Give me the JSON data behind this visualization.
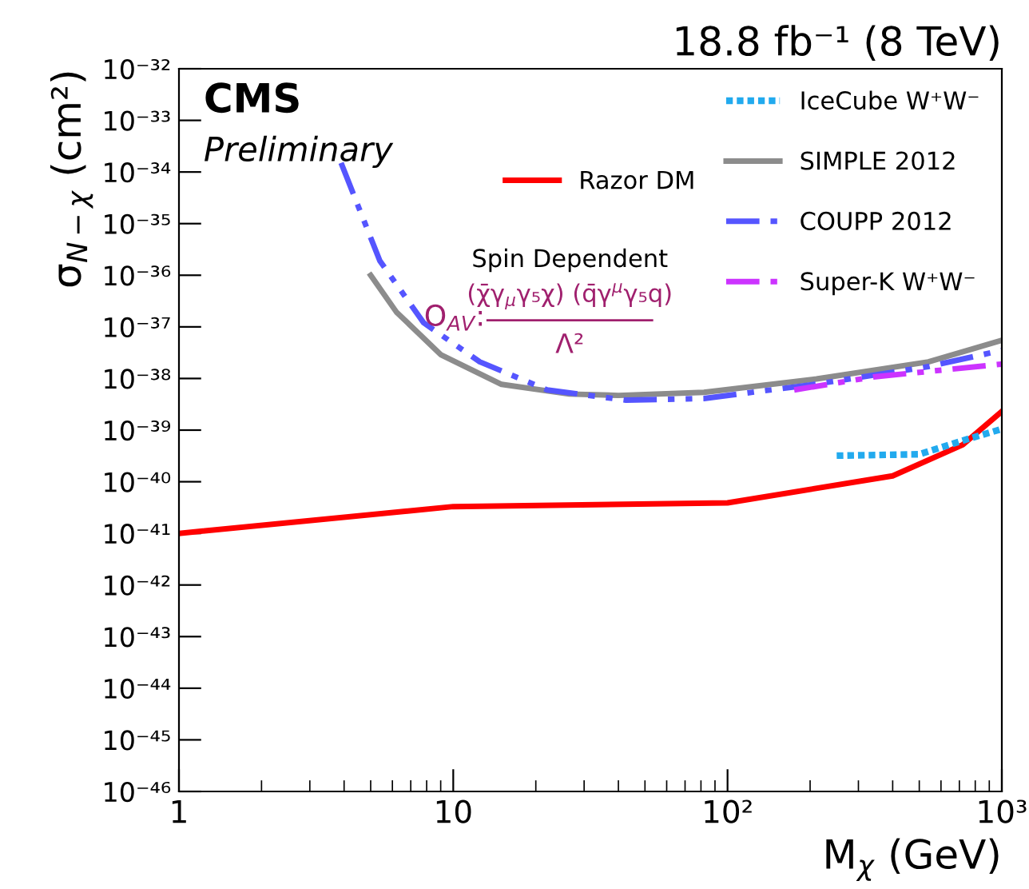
{
  "chart_data": {
    "type": "line",
    "title": "18.8 fb⁻¹ (8 TeV)",
    "xlabel": "M$_{χ}$ (GeV)",
    "ylabel": "σ$_{N−χ}$ (cm²)",
    "log": "xy",
    "grid": false,
    "legend": "top right",
    "marker": "none",
    "xlim": [
      1,
      1000
    ],
    "ylim": [
      1e-46,
      1e-32
    ],
    "xticks": [
      1,
      10,
      {
        "value": 100,
        "label": "10²"
      },
      {
        "value": 1000,
        "label": "10³"
      }
    ],
    "yticks": [
      {
        "value": 1e-46,
        "label": "10⁻⁴⁶"
      },
      {
        "value": 1e-45,
        "label": "10⁻⁴⁵"
      },
      {
        "value": 1e-44,
        "label": "10⁻⁴⁴"
      },
      {
        "value": 1e-43,
        "label": "10⁻⁴³"
      },
      {
        "value": 1e-42,
        "label": "10⁻⁴²"
      },
      {
        "value": 1e-41,
        "label": "10⁻⁴¹"
      },
      {
        "value": 1e-40,
        "label": "10⁻⁴⁰"
      },
      {
        "value": 1e-39,
        "label": "10⁻³⁹"
      },
      {
        "value": 1e-38,
        "label": "10⁻³⁸"
      },
      {
        "value": 1e-37,
        "label": "10⁻³⁷"
      },
      {
        "value": 1e-36,
        "label": "10⁻³⁶"
      },
      {
        "value": 1e-35,
        "label": "10⁻³⁵"
      },
      {
        "value": 1e-34,
        "label": "10⁻³⁴"
      },
      {
        "value": 1e-33,
        "label": "10⁻³³"
      },
      {
        "value": 1e-32,
        "label": "10⁻³²"
      }
    ],
    "series": [
      {
        "name": "Razor DM",
        "color": "#ff0000",
        "line_style": "solid",
        "x": [
          1,
          10,
          100,
          400,
          720,
          1000
        ],
        "values": [
          1e-41,
          3.3e-41,
          3.9e-41,
          1.3e-40,
          5.2e-40,
          2.3e-39
        ]
      },
      {
        "name": "IceCube W⁺W⁻",
        "color": "#22aaee",
        "line_style": "dotted",
        "x": [
          250,
          500,
          715,
          1000
        ],
        "values": [
          3.2e-40,
          3.4e-40,
          6.2e-40,
          1.05e-39
        ]
      },
      {
        "name": "SIMPLE 2012",
        "color": "#8c8c8c",
        "line_style": "solid",
        "x": [
          5,
          6.2,
          9,
          15,
          26.5,
          40,
          82,
          211,
          540,
          1000
        ],
        "values": [
          1e-36,
          1.95e-37,
          2.9e-38,
          7.7e-39,
          5e-39,
          4.7e-39,
          5.4e-39,
          9.8e-39,
          2.1e-38,
          5.5e-38
        ]
      },
      {
        "name": "COUPP 2012",
        "color": "#5555ff",
        "line_style": "dashed",
        "x": [
          3.9,
          5.4,
          7.8,
          12.5,
          22,
          42.6,
          82,
          211,
          540,
          1000
        ],
        "values": [
          1.5e-34,
          1.9e-36,
          1.2e-37,
          2.1e-38,
          6e-39,
          3.8e-39,
          4.1e-39,
          7.8e-39,
          1.7e-38,
          3.5e-38
        ]
      },
      {
        "name": "Super-K W⁺W⁻",
        "color": "#cc33ff",
        "line_style": "dashed",
        "x": [
          175,
          340,
          1000
        ],
        "values": [
          6e-39,
          1.07e-38,
          1.9e-38
        ]
      }
    ],
    "annotations": [
      "CMS",
      "Preliminary",
      "Spin Dependent",
      "O$_{AV}$:",
      "(χ̄γ$_{μ}$γ₅χ) (q̄γ$^{μ}$γ₅q)",
      "Λ²"
    ]
  }
}
